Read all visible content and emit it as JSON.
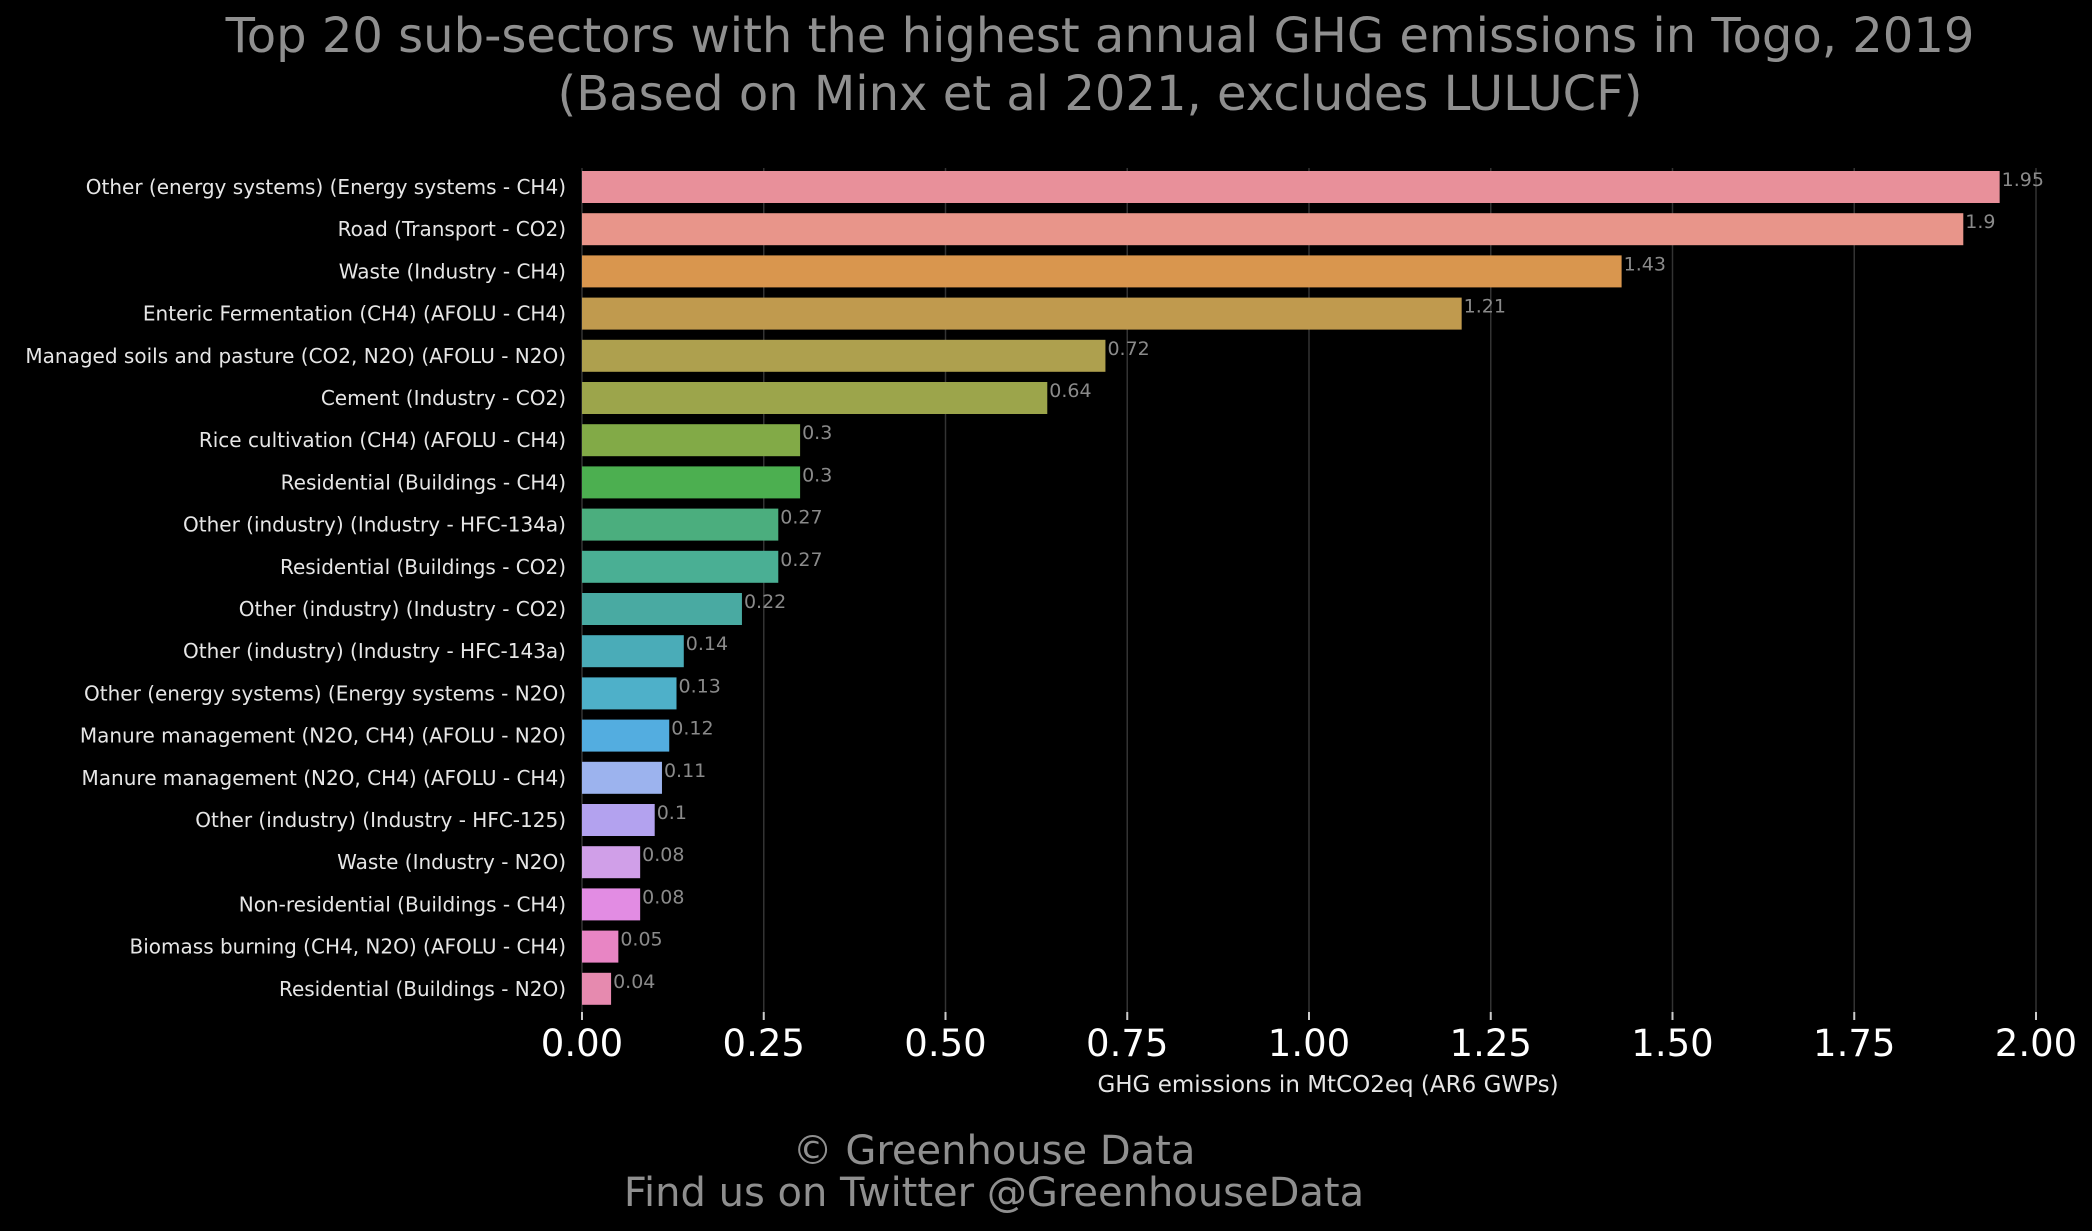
{
  "chart_data": {
    "type": "bar",
    "orientation": "horizontal",
    "title": "Top 20 sub-sectors with the highest annual GHG emissions in Togo, 2019",
    "subtitle": "(Based on Minx et al 2021, excludes LULUCF)",
    "xlabel": "GHG emissions in MtCO2eq (AR6 GWPs)",
    "ylabel": "",
    "xlim": [
      0,
      2.0
    ],
    "xticks": [
      "0.00",
      "0.25",
      "0.50",
      "0.75",
      "1.00",
      "1.25",
      "1.50",
      "1.75",
      "2.00"
    ],
    "grid": true,
    "categories": [
      "Other (energy systems) (Energy systems - CH4)",
      "Road (Transport - CO2)",
      "Waste (Industry - CH4)",
      "Enteric Fermentation (CH4) (AFOLU - CH4)",
      "Managed soils and pasture (CO2, N2O) (AFOLU - N2O)",
      "Cement (Industry - CO2)",
      "Rice cultivation (CH4) (AFOLU - CH4)",
      "Residential (Buildings - CH4)",
      "Other (industry) (Industry - HFC-134a)",
      "Residential (Buildings - CO2)",
      "Other (industry) (Industry - CO2)",
      "Other (industry) (Industry - HFC-143a)",
      "Other (energy systems) (Energy systems - N2O)",
      "Manure management (N2O, CH4) (AFOLU - N2O)",
      "Manure management (N2O, CH4) (AFOLU - CH4)",
      "Other (industry) (Industry - HFC-125)",
      "Waste (Industry - N2O)",
      "Non-residential (Buildings - CH4)",
      "Biomass burning (CH4, N2O) (AFOLU - CH4)",
      "Residential (Buildings - N2O)"
    ],
    "values": [
      1.95,
      1.9,
      1.43,
      1.21,
      0.72,
      0.64,
      0.3,
      0.3,
      0.27,
      0.27,
      0.22,
      0.14,
      0.13,
      0.12,
      0.11,
      0.1,
      0.08,
      0.08,
      0.05,
      0.04
    ],
    "value_labels": [
      "1.95",
      "1.9",
      "1.43",
      "1.21",
      "0.72",
      "0.64",
      "0.3",
      "0.3",
      "0.27",
      "0.27",
      "0.22",
      "0.14",
      "0.13",
      "0.12",
      "0.11",
      "0.1",
      "0.08",
      "0.08",
      "0.05",
      "0.04"
    ],
    "colors": [
      "#e8909a",
      "#e8958a",
      "#d9964e",
      "#c09a4e",
      "#aea04e",
      "#9ca54b",
      "#82aa47",
      "#4caf50",
      "#4bae7e",
      "#4aaf94",
      "#49aaa2",
      "#4aacb8",
      "#4eb0c9",
      "#53ade0",
      "#9cb3ee",
      "#b3a2ef",
      "#d09fe8",
      "#e28ce3",
      "#e885c4",
      "#e68aaf"
    ]
  },
  "footer": {
    "line1": "© Greenhouse Data",
    "line2": "Find us on Twitter @GreenhouseData"
  }
}
